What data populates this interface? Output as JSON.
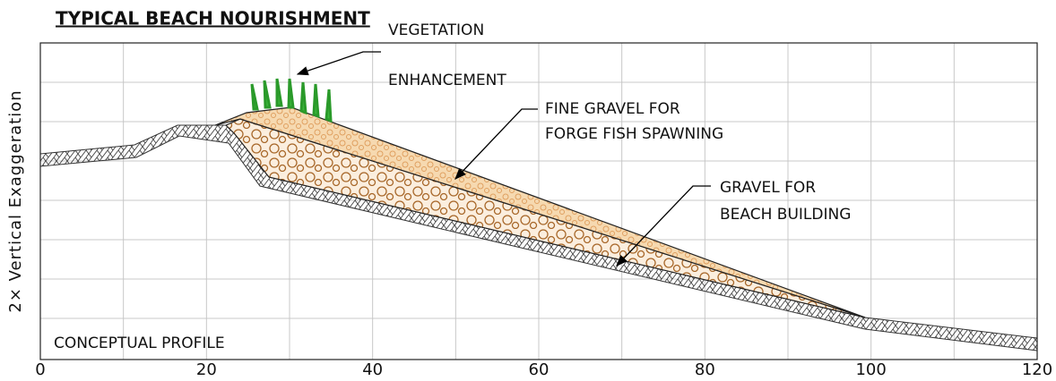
{
  "header": {
    "title": "TYPICAL BEACH NOURISHMENT"
  },
  "y_axis": {
    "label": "2× Vertical Exaggeration"
  },
  "x_axis": {
    "ticks": [
      0,
      20,
      40,
      60,
      80,
      100,
      120
    ]
  },
  "annotations": {
    "vegetation": [
      "VEGETATION",
      "ENHANCEMENT"
    ],
    "fine_gravel": [
      "FINE GRAVEL FOR",
      "FORGE FISH SPAWNING"
    ],
    "gravel": [
      "GRAVEL FOR",
      "BEACH BUILDING"
    ],
    "profile": "CONCEPTUAL PROFILE"
  }
}
